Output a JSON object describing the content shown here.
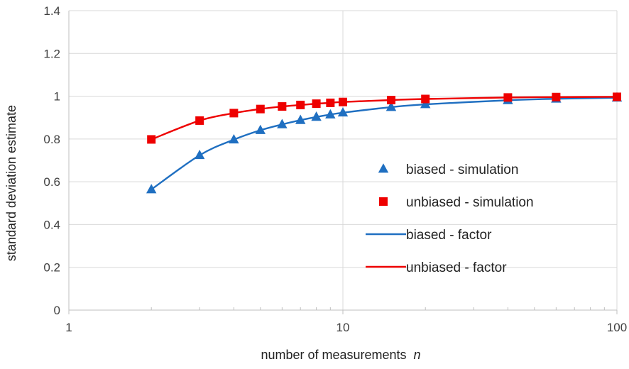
{
  "chart_data": {
    "type": "scatter",
    "xlabel": "number of measurements",
    "xlabel_var": "n",
    "ylabel": "standard deviation estimate",
    "xscale": "log",
    "xlim": [
      1,
      100
    ],
    "ylim": [
      0,
      1.4
    ],
    "x_tick_labels": [
      "1",
      "10",
      "100"
    ],
    "y_tick_labels": [
      "0",
      "0.2",
      "0.4",
      "0.6",
      "0.8",
      "1",
      "1.2",
      "1.4"
    ],
    "grid": "major gridlines",
    "legend_position": "right",
    "series": [
      {
        "name": "biased - simulation",
        "kind": "markers",
        "marker": "triangle",
        "color": "#1f6fc1",
        "points": [
          [
            2,
            0.564
          ],
          [
            3,
            0.724
          ],
          [
            4,
            0.797
          ],
          [
            5,
            0.841
          ],
          [
            6,
            0.868
          ],
          [
            7,
            0.888
          ],
          [
            8,
            0.903
          ],
          [
            9,
            0.914
          ],
          [
            10,
            0.923
          ],
          [
            15,
            0.949
          ],
          [
            20,
            0.962
          ],
          [
            40,
            0.981
          ],
          [
            60,
            0.988
          ],
          [
            100,
            0.993
          ]
        ]
      },
      {
        "name": "unbiased - simulation",
        "kind": "markers",
        "marker": "square",
        "color": "#ee0000",
        "points": [
          [
            2,
            0.798
          ],
          [
            3,
            0.886
          ],
          [
            4,
            0.921
          ],
          [
            5,
            0.94
          ],
          [
            6,
            0.952
          ],
          [
            7,
            0.959
          ],
          [
            8,
            0.965
          ],
          [
            9,
            0.969
          ],
          [
            10,
            0.973
          ],
          [
            15,
            0.982
          ],
          [
            20,
            0.987
          ],
          [
            40,
            0.994
          ],
          [
            60,
            0.996
          ],
          [
            100,
            0.997
          ]
        ]
      },
      {
        "name": "biased - factor",
        "kind": "line",
        "color": "#1f6fc1",
        "points": [
          [
            2,
            0.564
          ],
          [
            3,
            0.724
          ],
          [
            4,
            0.797
          ],
          [
            5,
            0.841
          ],
          [
            6,
            0.868
          ],
          [
            7,
            0.888
          ],
          [
            8,
            0.903
          ],
          [
            9,
            0.914
          ],
          [
            10,
            0.923
          ],
          [
            15,
            0.949
          ],
          [
            20,
            0.962
          ],
          [
            40,
            0.981
          ],
          [
            60,
            0.988
          ],
          [
            100,
            0.993
          ]
        ]
      },
      {
        "name": "unbiased - factor",
        "kind": "line",
        "color": "#ee0000",
        "points": [
          [
            2,
            0.798
          ],
          [
            3,
            0.886
          ],
          [
            4,
            0.921
          ],
          [
            5,
            0.94
          ],
          [
            6,
            0.952
          ],
          [
            7,
            0.959
          ],
          [
            8,
            0.965
          ],
          [
            9,
            0.969
          ],
          [
            10,
            0.973
          ],
          [
            15,
            0.982
          ],
          [
            20,
            0.987
          ],
          [
            40,
            0.994
          ],
          [
            60,
            0.996
          ],
          [
            100,
            0.997
          ]
        ]
      }
    ]
  }
}
